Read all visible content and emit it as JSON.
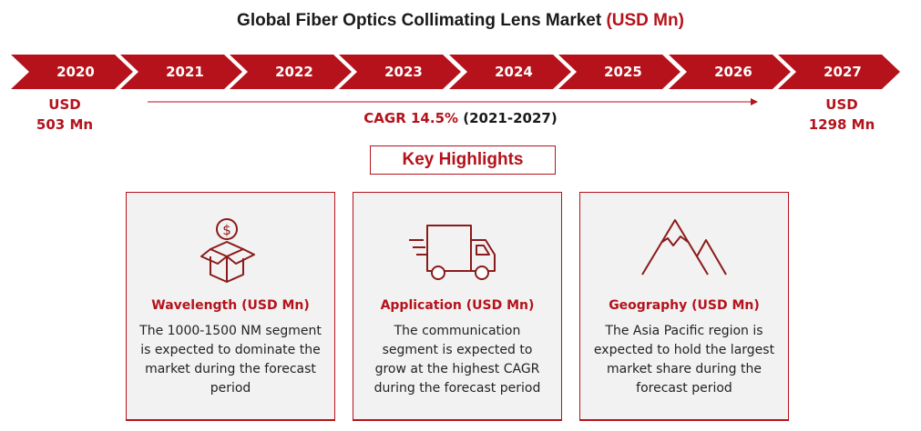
{
  "title": {
    "main": "Global Fiber Optics Collimating Lens Market ",
    "unit": "(USD Mn)"
  },
  "timeline": {
    "years": [
      "2020",
      "2021",
      "2022",
      "2023",
      "2024",
      "2025",
      "2026",
      "2027"
    ]
  },
  "start_value": {
    "line1": "USD",
    "line2": "503 Mn"
  },
  "end_value": {
    "line1": "USD",
    "line2": "1298 Mn"
  },
  "cagr": {
    "label": "CAGR 14.5%",
    "period": " (2021-2027)"
  },
  "key_highlights": "Key Highlights",
  "cards": [
    {
      "icon": "money-box-icon",
      "title": "Wavelength (USD Mn)",
      "text": "The 1000-1500 NM segment is expected to dominate the market during the forecast period"
    },
    {
      "icon": "delivery-truck-icon",
      "title": "Application (USD Mn)",
      "text": "The communication segment is expected to grow at the highest CAGR during the forecast period"
    },
    {
      "icon": "mountain-icon",
      "title": "Geography (USD Mn)",
      "text": "The Asia Pacific region is expected to hold the largest market share during the forecast period"
    }
  ],
  "colors": {
    "accent": "#b5121b",
    "card_bg": "#f2f2f2"
  }
}
